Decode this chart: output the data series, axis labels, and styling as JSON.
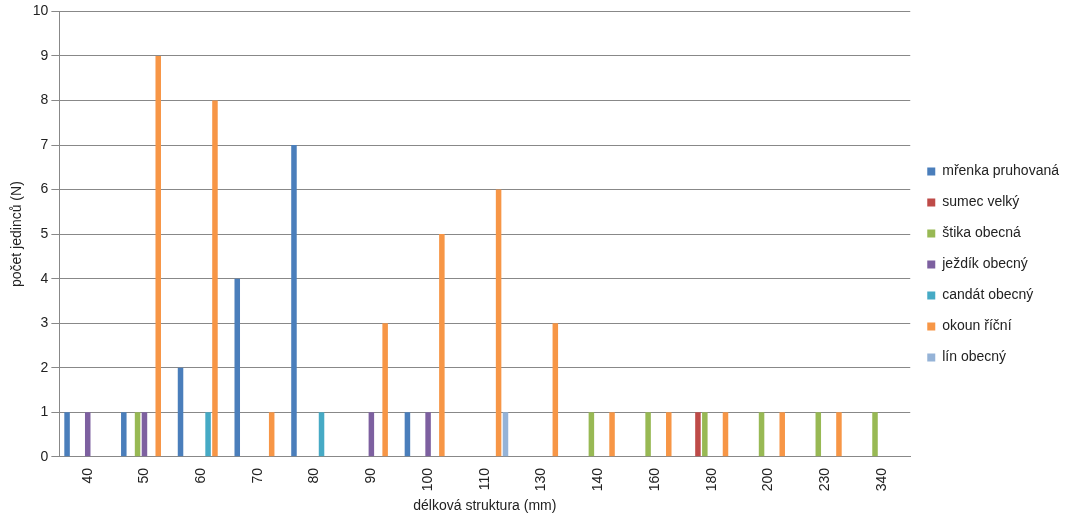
{
  "chart_data": {
    "type": "bar",
    "xlabel": "délková struktura (mm)",
    "ylabel": "počet jedinců (N)",
    "categories": [
      "40",
      "50",
      "60",
      "70",
      "80",
      "90",
      "100",
      "110",
      "130",
      "140",
      "160",
      "180",
      "200",
      "230",
      "340"
    ],
    "series": [
      {
        "name": "mřenka pruhovaná",
        "color": "#4a7ebb",
        "values": [
          1,
          1,
          2,
          4,
          7,
          null,
          1,
          null,
          null,
          null,
          null,
          null,
          null,
          null,
          null
        ]
      },
      {
        "name": "sumec velký",
        "color": "#be4b48",
        "values": [
          null,
          null,
          null,
          null,
          null,
          null,
          null,
          null,
          null,
          null,
          null,
          1,
          null,
          null,
          null
        ]
      },
      {
        "name": "štika obecná",
        "color": "#98b954",
        "values": [
          null,
          1,
          null,
          null,
          null,
          null,
          null,
          null,
          null,
          1,
          1,
          1,
          1,
          1,
          1
        ]
      },
      {
        "name": "ježdík obecný",
        "color": "#7d60a0",
        "values": [
          1,
          1,
          null,
          null,
          null,
          1,
          1,
          null,
          null,
          null,
          null,
          null,
          null,
          null,
          null
        ]
      },
      {
        "name": "candát obecný",
        "color": "#46aac5",
        "values": [
          null,
          null,
          1,
          null,
          1,
          null,
          null,
          null,
          null,
          null,
          null,
          null,
          null,
          null,
          null
        ]
      },
      {
        "name": "okoun říční",
        "color": "#f79646",
        "values": [
          null,
          9,
          8,
          1,
          null,
          3,
          5,
          6,
          3,
          1,
          1,
          1,
          1,
          1,
          null
        ]
      },
      {
        "name": "lín obecný",
        "color": "#95b3d7",
        "values": [
          null,
          null,
          null,
          null,
          null,
          null,
          null,
          1,
          null,
          null,
          null,
          null,
          null,
          null,
          null
        ]
      }
    ],
    "ylim": [
      0,
      10
    ],
    "yticks": [
      0,
      1,
      2,
      3,
      4,
      5,
      6,
      7,
      8,
      9,
      10
    ],
    "grid": "y",
    "legend": "right"
  }
}
